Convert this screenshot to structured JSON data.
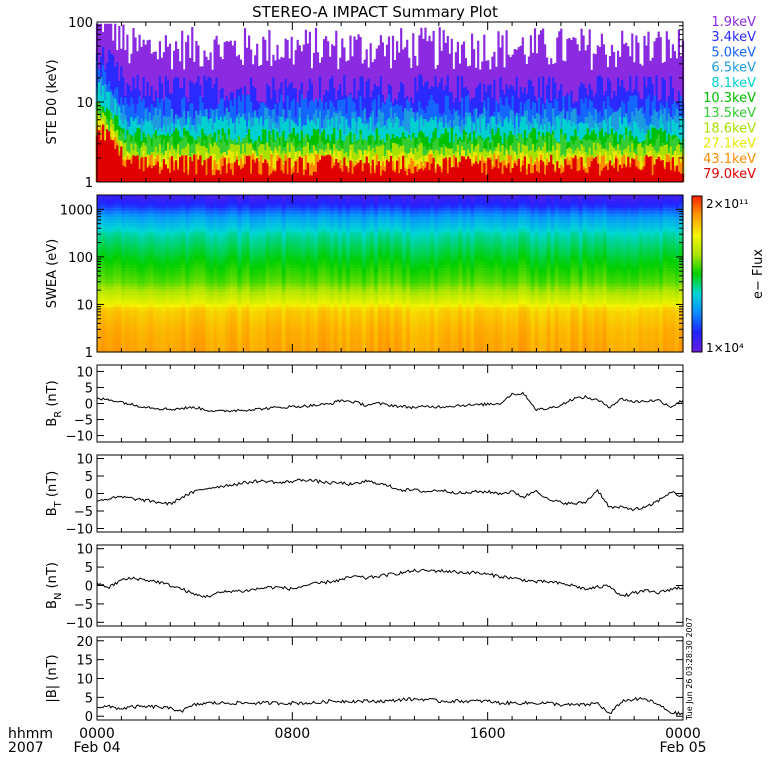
{
  "chart_data": {
    "title": "STEREO-A IMPACT Summary Plot",
    "time_axis": {
      "row1_label": "hhmm",
      "row2_label": "2007",
      "ticks": [
        {
          "hour": 0,
          "label": "0000",
          "sub": "Feb 04"
        },
        {
          "hour": 8,
          "label": "0800",
          "sub": ""
        },
        {
          "hour": 16,
          "label": "1600",
          "sub": ""
        },
        {
          "hour": 24,
          "label": "0000",
          "sub": "Feb 05"
        }
      ],
      "range_hours": [
        0,
        24
      ]
    },
    "side_stamp": "Tue Jun 26 03:28:30 2007",
    "panels": [
      {
        "id": "ste",
        "type": "line",
        "ylabel": "STE D0 (keV)",
        "scale": "log",
        "ylim": [
          1,
          100
        ],
        "yticks": [
          {
            "v": 1,
            "t": "1"
          },
          {
            "v": 10,
            "t": "10"
          },
          {
            "v": 100,
            "t": "100"
          }
        ],
        "series": [
          {
            "name": "1.9keV",
            "color": "#8a2be2",
            "base": 25,
            "spread": 2.0
          },
          {
            "name": "3.4keV",
            "color": "#2a2aff",
            "base": 9.5,
            "spread": 1.6
          },
          {
            "name": "5.0keV",
            "color": "#1565ff",
            "base": 6.0,
            "spread": 1.5
          },
          {
            "name": "6.5keV",
            "color": "#1e9be0",
            "base": 4.7,
            "spread": 1.4
          },
          {
            "name": "8.1keV",
            "color": "#00d0d0",
            "base": 3.9,
            "spread": 1.35
          },
          {
            "name": "10.3keV",
            "color": "#00c000",
            "base": 3.0,
            "spread": 1.3
          },
          {
            "name": "13.5keV",
            "color": "#33cc33",
            "base": 2.5,
            "spread": 1.3
          },
          {
            "name": "18.6keV",
            "color": "#a8e000",
            "base": 2.1,
            "spread": 1.25
          },
          {
            "name": "27.1keV",
            "color": "#e8e800",
            "base": 1.7,
            "spread": 1.25
          },
          {
            "name": "43.1keV",
            "color": "#ff8c00",
            "base": 1.4,
            "spread": 1.3
          },
          {
            "name": "79.0keV",
            "color": "#e00000",
            "base": 1.2,
            "spread": 1.4
          }
        ]
      },
      {
        "id": "swea",
        "type": "heatmap",
        "ylabel": "SWEA (eV)",
        "scale": "log",
        "ylim": [
          1,
          2000
        ],
        "yticks": [
          {
            "v": 1,
            "t": "1"
          },
          {
            "v": 10,
            "t": "10"
          },
          {
            "v": 100,
            "t": "100"
          },
          {
            "v": 1000,
            "t": "1000"
          }
        ],
        "colorbar": {
          "label": "e− Flux",
          "max": "2×10¹¹",
          "min": "1×10⁴",
          "colors": [
            "#6a1ee0",
            "#2222ff",
            "#0a8cff",
            "#00d6d6",
            "#00d000",
            "#aee600",
            "#f4f400",
            "#ff9a00",
            "#ff2200"
          ]
        },
        "energy_flux_profile": [
          {
            "ev": 1,
            "level": 0.86
          },
          {
            "ev": 3,
            "level": 0.84
          },
          {
            "ev": 8,
            "level": 0.8
          },
          {
            "ev": 12,
            "level": 0.7
          },
          {
            "ev": 30,
            "level": 0.56
          },
          {
            "ev": 100,
            "level": 0.48
          },
          {
            "ev": 300,
            "level": 0.4
          },
          {
            "ev": 700,
            "level": 0.28
          },
          {
            "ev": 1200,
            "level": 0.14
          },
          {
            "ev": 2000,
            "level": 0.06
          }
        ]
      },
      {
        "id": "br",
        "type": "line",
        "ylabel": "B_R (nT)",
        "ylim": [
          -12,
          12
        ],
        "yticks": [
          {
            "v": 10,
            "t": "10"
          },
          {
            "v": 5,
            "t": "5"
          },
          {
            "v": 0,
            "t": "0"
          },
          {
            "v": -5,
            "t": "−5"
          },
          {
            "v": -10,
            "t": "−10"
          }
        ],
        "x": [
          0,
          0.5,
          1,
          1.5,
          2,
          2.5,
          3,
          3.5,
          4,
          4.5,
          5,
          5.5,
          6,
          6.5,
          7,
          7.5,
          8,
          8.5,
          9,
          9.5,
          10,
          10.5,
          11,
          11.5,
          12,
          12.5,
          13,
          13.5,
          14,
          14.5,
          15,
          15.5,
          16,
          16.5,
          17,
          17.5,
          18,
          18.5,
          19,
          19.5,
          20,
          20.5,
          21,
          21.5,
          22,
          22.5,
          23,
          23.5,
          24
        ],
        "y": [
          1.5,
          1.2,
          0.5,
          -0.5,
          -1.0,
          -1.5,
          -1.8,
          -1.5,
          -1.2,
          -2.0,
          -2.5,
          -2.2,
          -2.0,
          -1.8,
          -1.5,
          -1.2,
          -1.0,
          -0.8,
          -0.5,
          -0.2,
          1.0,
          0.5,
          -0.5,
          0.0,
          -0.5,
          -1.0,
          -1.2,
          -1.0,
          -1.0,
          -0.8,
          -0.5,
          -0.5,
          -0.2,
          0.0,
          3.0,
          3.0,
          -2.0,
          -1.5,
          -0.5,
          1.5,
          2.0,
          1.0,
          -1.0,
          1.5,
          0.5,
          0.8,
          1.0,
          -1.0,
          1.0
        ]
      },
      {
        "id": "bt",
        "type": "line",
        "ylabel": "B_T (nT)",
        "ylim": [
          -11,
          11
        ],
        "yticks": [
          {
            "v": 10,
            "t": "10"
          },
          {
            "v": 5,
            "t": "5"
          },
          {
            "v": 0,
            "t": "0"
          },
          {
            "v": -5,
            "t": "−5"
          },
          {
            "v": -10,
            "t": "−10"
          }
        ],
        "x": [
          0,
          0.5,
          1,
          1.5,
          2,
          2.5,
          3,
          3.5,
          4,
          4.5,
          5,
          5.5,
          6,
          6.5,
          7,
          7.5,
          8,
          8.5,
          9,
          9.5,
          10,
          10.5,
          11,
          11.5,
          12,
          12.5,
          13,
          13.5,
          14,
          14.5,
          15,
          15.5,
          16,
          16.5,
          17,
          17.5,
          18,
          18.5,
          19,
          19.5,
          20,
          20.5,
          21,
          21.5,
          22,
          22.5,
          23,
          23.5,
          24
        ],
        "y": [
          -2.0,
          -1.5,
          -1.0,
          -1.5,
          -2.0,
          -2.5,
          -3.0,
          -1.0,
          0.5,
          1.5,
          2.0,
          2.5,
          3.0,
          3.5,
          3.5,
          3.0,
          3.5,
          4.0,
          3.5,
          3.0,
          3.0,
          2.5,
          3.5,
          3.0,
          2.0,
          1.0,
          1.0,
          0.5,
          1.0,
          0.5,
          0.0,
          0.5,
          0.5,
          0.0,
          0.5,
          -1.0,
          1.0,
          -2.0,
          -2.5,
          -3.0,
          -2.5,
          1.0,
          -4.0,
          -4.0,
          -4.5,
          -4.0,
          -2.0,
          0.5,
          -1.0
        ]
      },
      {
        "id": "bn",
        "type": "line",
        "ylabel": "B_N (nT)",
        "ylim": [
          -11,
          11
        ],
        "yticks": [
          {
            "v": 10,
            "t": "10"
          },
          {
            "v": 5,
            "t": "5"
          },
          {
            "v": 0,
            "t": "0"
          },
          {
            "v": -5,
            "t": "−5"
          },
          {
            "v": -10,
            "t": "−10"
          }
        ],
        "x": [
          0,
          0.5,
          1,
          1.5,
          2,
          2.5,
          3,
          3.5,
          4,
          4.5,
          5,
          5.5,
          6,
          6.5,
          7,
          7.5,
          8,
          8.5,
          9,
          9.5,
          10,
          10.5,
          11,
          11.5,
          12,
          12.5,
          13,
          13.5,
          14,
          14.5,
          15,
          15.5,
          16,
          16.5,
          17,
          17.5,
          18,
          18.5,
          19,
          19.5,
          20,
          20.5,
          21,
          21.5,
          22,
          22.5,
          23,
          23.5,
          24
        ],
        "y": [
          0.5,
          -0.5,
          1.5,
          2.0,
          1.5,
          1.0,
          0.0,
          -1.0,
          -2.5,
          -3.0,
          -2.0,
          -1.5,
          -1.5,
          -1.0,
          -0.5,
          -0.5,
          -1.0,
          0.0,
          0.5,
          1.0,
          1.5,
          2.5,
          2.0,
          2.5,
          3.0,
          3.5,
          4.0,
          4.0,
          4.0,
          3.8,
          3.5,
          3.5,
          3.0,
          2.5,
          2.0,
          1.5,
          1.0,
          1.0,
          0.5,
          0.0,
          -1.0,
          -0.5,
          0.0,
          -3.0,
          -2.0,
          -1.5,
          -2.0,
          -1.0,
          -0.5
        ]
      },
      {
        "id": "bmag",
        "type": "line",
        "ylabel": "|B| (nT)",
        "ylim": [
          -1,
          21
        ],
        "yticks": [
          {
            "v": 20,
            "t": "20"
          },
          {
            "v": 15,
            "t": "15"
          },
          {
            "v": 10,
            "t": "10"
          },
          {
            "v": 5,
            "t": "5"
          },
          {
            "v": 0,
            "t": "0"
          }
        ],
        "x": [
          0,
          0.5,
          1,
          1.5,
          2,
          2.5,
          3,
          3.5,
          4,
          4.5,
          5,
          5.5,
          6,
          6.5,
          7,
          7.5,
          8,
          8.5,
          9,
          9.5,
          10,
          10.5,
          11,
          11.5,
          12,
          12.5,
          13,
          13.5,
          14,
          14.5,
          15,
          15.5,
          16,
          16.5,
          17,
          17.5,
          18,
          18.5,
          19,
          19.5,
          20,
          20.5,
          21,
          21.5,
          22,
          22.5,
          23,
          23.5,
          24
        ],
        "y": [
          2.5,
          2.5,
          2.0,
          2.5,
          2.5,
          2.5,
          2.0,
          1.5,
          3.0,
          3.5,
          3.5,
          3.5,
          3.5,
          3.5,
          3.5,
          3.5,
          3.5,
          3.5,
          3.5,
          4.0,
          4.0,
          4.0,
          4.0,
          4.0,
          4.0,
          4.5,
          4.5,
          4.5,
          4.0,
          4.0,
          4.0,
          4.0,
          4.0,
          3.5,
          3.5,
          3.5,
          3.5,
          3.5,
          3.0,
          3.0,
          3.0,
          3.5,
          0.5,
          4.0,
          4.5,
          4.5,
          3.0,
          1.0,
          0.5
        ]
      }
    ]
  }
}
